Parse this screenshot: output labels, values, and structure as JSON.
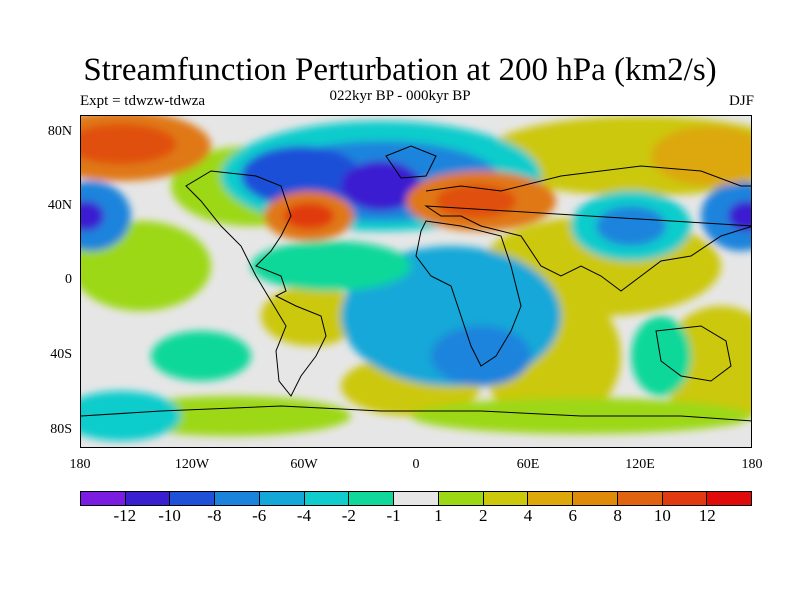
{
  "title": "Streamfunction Perturbation at 200 hPa (km2/s)",
  "subtitle": "022kyr BP - 000kyr BP",
  "left_label": "Expt = tdwzw-tdwza",
  "right_label": "DJF",
  "lat_ticks": [
    "80N",
    "40N",
    "0",
    "40S",
    "80S"
  ],
  "lon_ticks": [
    "180",
    "120W",
    "60W",
    "0",
    "60E",
    "120E",
    "180"
  ],
  "colorbar": {
    "colors": [
      "#7a1de0",
      "#3a1fd0",
      "#1e50d8",
      "#1a84dc",
      "#14a8d8",
      "#10cccc",
      "#10d89a",
      "#e6e6e6",
      "#9cd814",
      "#ccc80c",
      "#dca80a",
      "#e08a0a",
      "#e06410",
      "#e03a10",
      "#e00a0a"
    ],
    "labels": [
      "-12",
      "-10",
      "-8",
      "-6",
      "-4",
      "-2",
      "-1",
      "1",
      "2",
      "4",
      "6",
      "8",
      "10",
      "12"
    ]
  },
  "map": {
    "background": "#e6e6e6",
    "regions": [
      {
        "name": "north-pacific-high",
        "color": "#e07814"
      },
      {
        "name": "north-america-low",
        "color": "#1a4fd8"
      },
      {
        "name": "north-atlantic-high",
        "color": "#e05010"
      },
      {
        "name": "eurasia-high",
        "color": "#e07010"
      },
      {
        "name": "west-pacific-low",
        "color": "#1a84dc"
      }
    ]
  }
}
